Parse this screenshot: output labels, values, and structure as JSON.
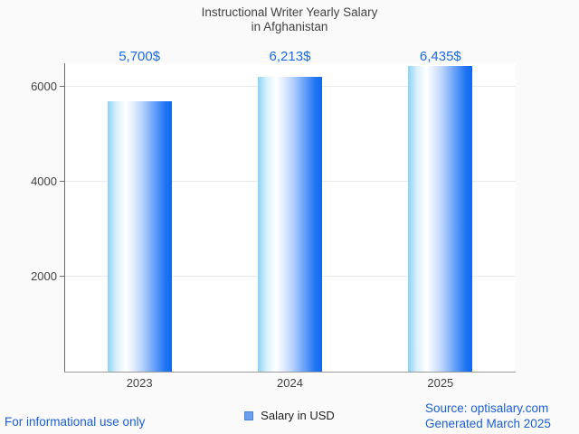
{
  "title": {
    "line1": "Instructional Writer Yearly Salary",
    "line2": "in Afghanistan"
  },
  "chart_data": {
    "type": "bar",
    "title": "Instructional Writer Yearly Salary in Afghanistan",
    "categories": [
      "2023",
      "2024",
      "2025"
    ],
    "values": [
      5700,
      6213,
      6435
    ],
    "value_labels": [
      "5,700$",
      "6,213$",
      "6,435$"
    ],
    "series_name": "Salary in USD",
    "xlabel": "",
    "ylabel": "",
    "y_ticks": [
      2000,
      4000,
      6000
    ],
    "ylim": [
      0,
      6495
    ],
    "grid": true,
    "legend_position": "bottom-center",
    "bar_gradient": [
      "#8ad3f6",
      "#ffffff",
      "#0d6af0"
    ]
  },
  "legend": {
    "label": "Salary in USD",
    "swatch_color": "#6d9eeb"
  },
  "footer": {
    "left_note": "For informational use only",
    "source": "Source: optisalary.com",
    "generated": "Generated March 2025"
  },
  "colors": {
    "accent_blue_text": "#1a6be4",
    "footer_blue_text": "#1a5fd4",
    "title_gray": "#424242",
    "axis_gray": "#6e6e6e",
    "gridline_gray": "#e9e9e9",
    "page_background": "#fafafa",
    "plot_background": "#ffffff"
  }
}
